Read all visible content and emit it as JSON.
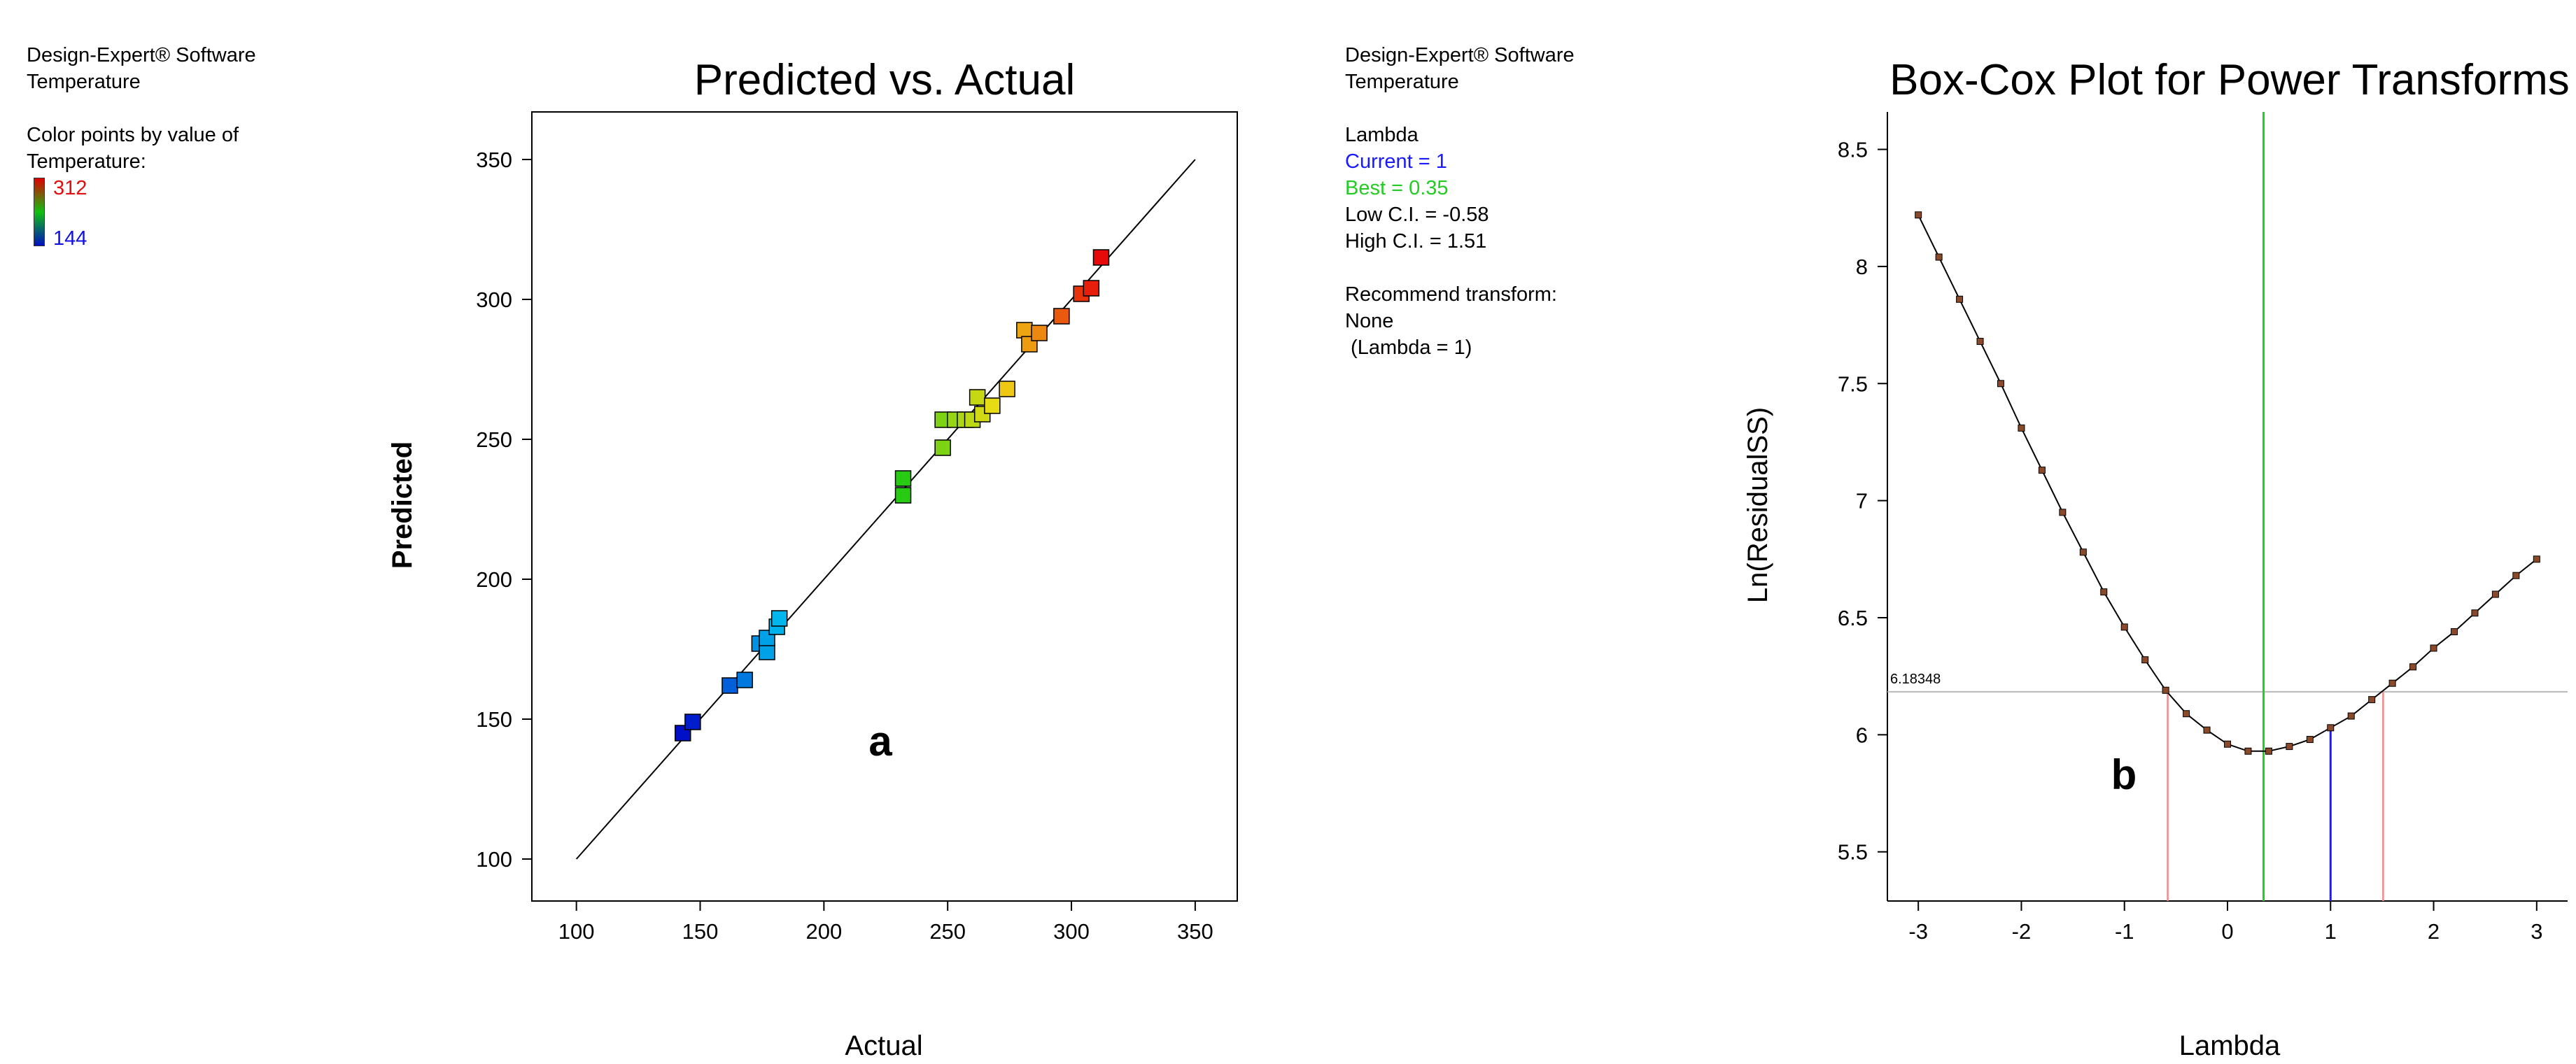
{
  "left_panel": {
    "software": "Design-Expert® Software",
    "response": "Temperature",
    "color_caption_1": "Color points by value of",
    "color_caption_2": "Temperature:",
    "legend_max": "312",
    "legend_min": "144",
    "legend_colors": {
      "high": "#e00000",
      "mid": "#10c010",
      "low": "#0010c0"
    }
  },
  "right_panel": {
    "software": "Design-Expert® Software",
    "response": "Temperature",
    "lambda_heading": "Lambda",
    "current": "Current = 1",
    "best": "Best = 0.35",
    "low_ci": "Low C.I. = -0.58",
    "high_ci": "High C.I. = 1.51",
    "recommend_heading": "Recommend transform:",
    "recommend_value": "None",
    "recommend_lambda": " (Lambda = 1)",
    "current_color": "#1a1aff",
    "best_color": "#22cc22"
  },
  "chart_data": [
    {
      "type": "scatter",
      "title": "Predicted vs. Actual",
      "xlabel": "Actual",
      "ylabel": "Predicted",
      "panel_label": "a",
      "xlim": [
        82,
        367
      ],
      "ylim": [
        85,
        367
      ],
      "xticks": [
        100,
        150,
        200,
        250,
        300,
        350
      ],
      "yticks": [
        100,
        150,
        200,
        250,
        300,
        350
      ],
      "reference_line": [
        [
          100,
          100
        ],
        [
          350,
          350
        ]
      ],
      "color_range": [
        144,
        312
      ],
      "points": [
        {
          "x": 143,
          "y": 145
        },
        {
          "x": 147,
          "y": 149
        },
        {
          "x": 162,
          "y": 162
        },
        {
          "x": 168,
          "y": 164
        },
        {
          "x": 174,
          "y": 177
        },
        {
          "x": 177,
          "y": 174
        },
        {
          "x": 177,
          "y": 179
        },
        {
          "x": 181,
          "y": 183
        },
        {
          "x": 182,
          "y": 186
        },
        {
          "x": 232,
          "y": 230
        },
        {
          "x": 232,
          "y": 236
        },
        {
          "x": 248,
          "y": 247
        },
        {
          "x": 248,
          "y": 257
        },
        {
          "x": 253,
          "y": 257
        },
        {
          "x": 257,
          "y": 257
        },
        {
          "x": 260,
          "y": 257
        },
        {
          "x": 262,
          "y": 265
        },
        {
          "x": 264,
          "y": 259
        },
        {
          "x": 268,
          "y": 262
        },
        {
          "x": 274,
          "y": 268
        },
        {
          "x": 281,
          "y": 289
        },
        {
          "x": 283,
          "y": 284
        },
        {
          "x": 287,
          "y": 288
        },
        {
          "x": 296,
          "y": 294
        },
        {
          "x": 304,
          "y": 302
        },
        {
          "x": 308,
          "y": 304
        },
        {
          "x": 312,
          "y": 315
        }
      ]
    },
    {
      "type": "line",
      "title": "Box-Cox Plot for Power Transforms",
      "xlabel": "Lambda",
      "ylabel": "Ln(ResidualSS)",
      "panel_label": "b",
      "xlim": [
        -3.3,
        3.3
      ],
      "ylim": [
        5.29,
        8.66
      ],
      "xticks": [
        -3,
        -2,
        -1,
        0,
        1,
        2,
        3
      ],
      "yticks": [
        5.5,
        6,
        6.5,
        7,
        7.5,
        8,
        8.5
      ],
      "ytick_labels": [
        "5.5",
        "6",
        "6.5",
        "7",
        "7.5",
        "8",
        "8.5"
      ],
      "ci_threshold": 6.18348,
      "ci_threshold_label": "6.18348",
      "lambda_current": 1,
      "lambda_best": 0.35,
      "lambda_low_ci": -0.58,
      "lambda_high_ci": 1.51,
      "x": [
        -3.0,
        -2.8,
        -2.6,
        -2.4,
        -2.2,
        -2.0,
        -1.8,
        -1.6,
        -1.4,
        -1.2,
        -1.0,
        -0.8,
        -0.6,
        -0.4,
        -0.2,
        0.0,
        0.2,
        0.4,
        0.6,
        0.8,
        1.0,
        1.2,
        1.4,
        1.6,
        1.8,
        2.0,
        2.2,
        2.4,
        2.6,
        2.8,
        3.0
      ],
      "y": [
        8.22,
        8.04,
        7.86,
        7.68,
        7.5,
        7.31,
        7.13,
        6.95,
        6.78,
        6.61,
        6.46,
        6.32,
        6.19,
        6.09,
        6.02,
        5.96,
        5.93,
        5.93,
        5.95,
        5.98,
        6.03,
        6.08,
        6.15,
        6.22,
        6.29,
        6.37,
        6.44,
        6.52,
        6.6,
        6.68,
        6.75
      ]
    }
  ]
}
